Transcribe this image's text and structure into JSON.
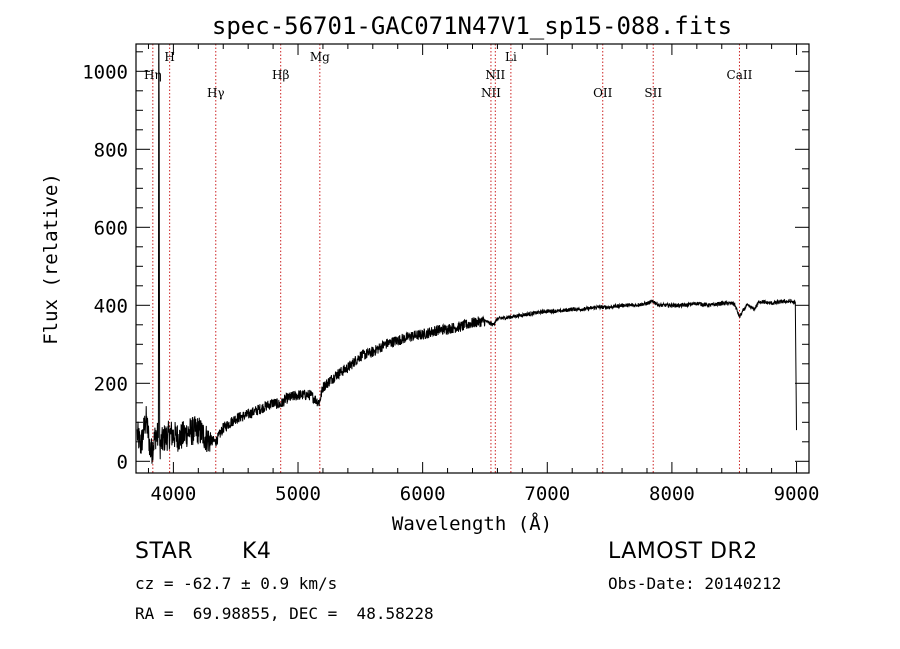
{
  "chart_data": {
    "type": "line",
    "title": "spec-56701-GAC071N47V1_sp15-088.fits",
    "xlabel": "Wavelength (Å)",
    "ylabel": "Flux (relative)",
    "xlim": [
      3700,
      9100
    ],
    "ylim": [
      -30,
      1070
    ],
    "x_ticks": [
      4000,
      5000,
      6000,
      7000,
      8000,
      9000
    ],
    "x_tick_labels": [
      "4000",
      "5000",
      "6000",
      "7000",
      "8000",
      "9000"
    ],
    "y_ticks": [
      0,
      200,
      400,
      600,
      800,
      1000
    ],
    "y_tick_labels": [
      "0",
      "200",
      "400",
      "600",
      "800",
      "1000"
    ],
    "series": [
      {
        "x": [
          3700,
          3740,
          3780,
          3820,
          3860,
          3880,
          3881,
          3885,
          3890,
          3930,
          3980,
          4050,
          4120,
          4200,
          4280,
          4340,
          4400,
          4500,
          4600,
          4700,
          4800,
          4861,
          4900,
          5000,
          5100,
          5170,
          5200,
          5300,
          5400,
          5500,
          5600,
          5700,
          5800,
          5900,
          6000,
          6100,
          6200,
          6300,
          6400,
          6500,
          6563,
          6600,
          6700,
          6800,
          6900,
          7000,
          7100,
          7200,
          7300,
          7400,
          7500,
          7600,
          7700,
          7800,
          7850,
          7900,
          8000,
          8100,
          8200,
          8300,
          8400,
          8500,
          8542,
          8600,
          8662,
          8700,
          8800,
          8900,
          8960,
          8990,
          9000
        ],
        "y": [
          80,
          40,
          110,
          20,
          70,
          60,
          1070,
          1070,
          40,
          60,
          70,
          60,
          75,
          80,
          55,
          50,
          85,
          110,
          120,
          135,
          150,
          145,
          160,
          170,
          170,
          150,
          190,
          220,
          240,
          270,
          280,
          300,
          310,
          320,
          325,
          335,
          340,
          345,
          355,
          360,
          350,
          365,
          370,
          375,
          380,
          385,
          385,
          390,
          390,
          395,
          395,
          400,
          400,
          405,
          410,
          400,
          400,
          400,
          405,
          400,
          405,
          405,
          370,
          400,
          390,
          410,
          405,
          410,
          410,
          405,
          80
        ]
      }
    ],
    "lines": [
      {
        "label": "Hη",
        "x": 3835,
        "row": 1
      },
      {
        "label": "H",
        "x": 3970,
        "row": 0
      },
      {
        "label": "Hγ",
        "x": 4340,
        "row": 2
      },
      {
        "label": "Hβ",
        "x": 4861,
        "row": 1
      },
      {
        "label": "Mg",
        "x": 5175,
        "row": 0
      },
      {
        "label": "NII",
        "x": 6548,
        "row": 2
      },
      {
        "label": "NII",
        "x": 6583,
        "row": 1
      },
      {
        "label": "Li",
        "x": 6708,
        "row": 0
      },
      {
        "label": "OII",
        "x": 7445,
        "row": 2
      },
      {
        "label": "SII",
        "x": 7850,
        "row": 2
      },
      {
        "label": "CaII",
        "x": 8542,
        "row": 1
      }
    ],
    "grid": false,
    "colors": {
      "spectrum": "#000000",
      "line_markers": "#cc2222",
      "axes": "#000000"
    }
  },
  "info": {
    "class_label": "STAR",
    "subclass": "K4",
    "survey": "LAMOST DR2",
    "redshift": "cz = -62.7 ± 0.9 km/s",
    "obs_date": "Obs-Date: 20140212",
    "coords": "RA =  69.98855, DEC =  48.58228"
  }
}
